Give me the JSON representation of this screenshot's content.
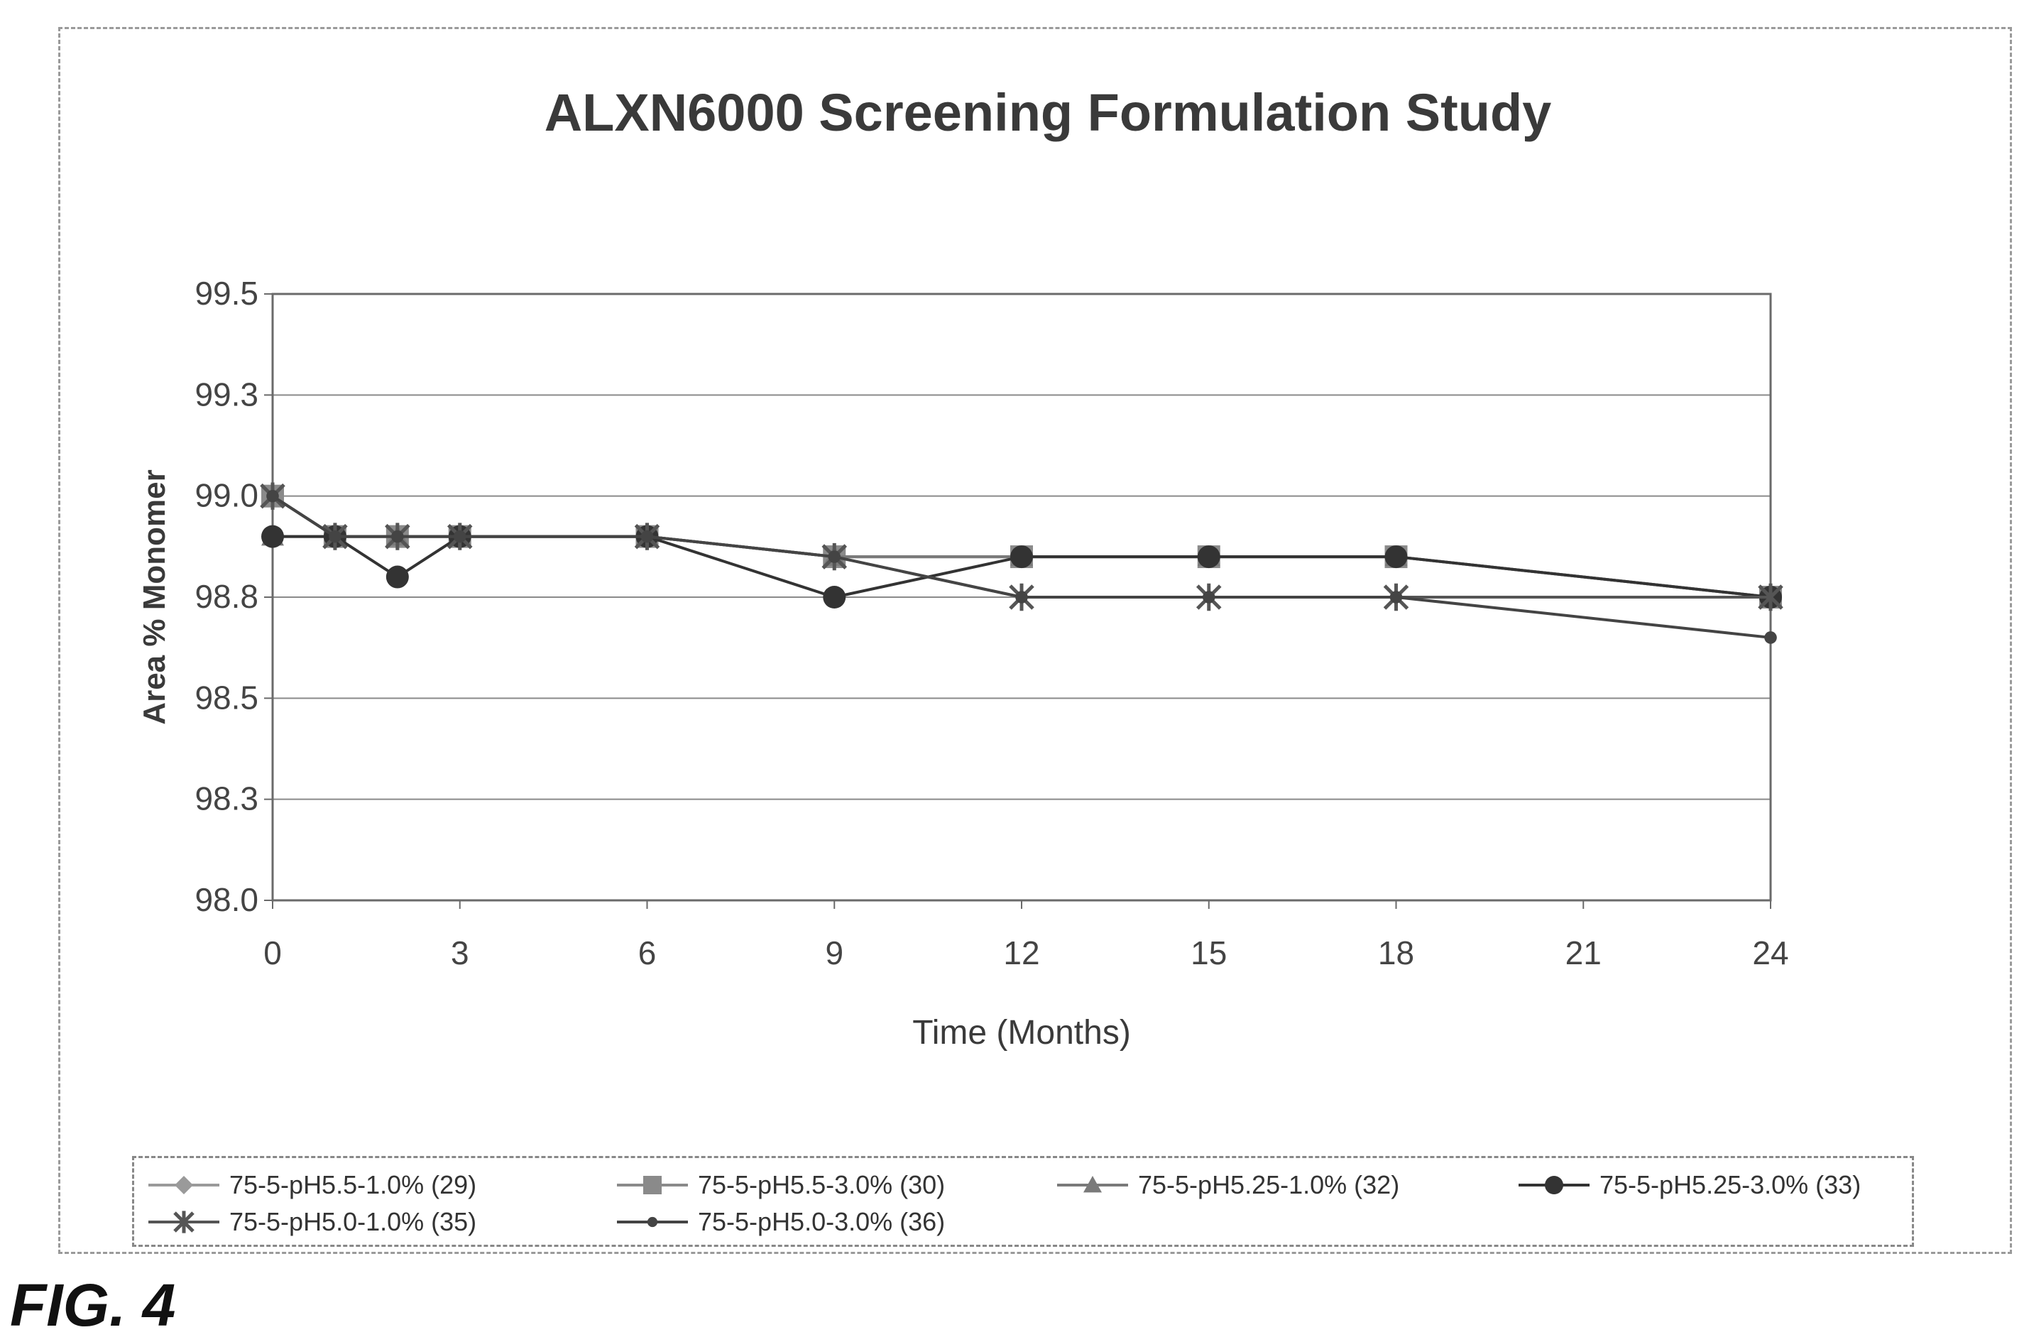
{
  "figure_label": "FIG. 4",
  "chart_data": {
    "type": "line",
    "title": "ALXN6000 Screening Formulation Study",
    "xlabel": "Time (Months)",
    "ylabel": "Area % Monomer",
    "xlim": [
      0,
      24
    ],
    "ylim": [
      98.0,
      99.5
    ],
    "x_ticks": [
      0,
      3,
      6,
      9,
      12,
      15,
      18,
      21,
      24
    ],
    "y_ticks": [
      98.0,
      98.25,
      98.5,
      98.75,
      99.0,
      99.25,
      99.5
    ],
    "y_tick_labels": [
      "98.0",
      "98.3",
      "98.5",
      "98.8",
      "99.0",
      "99.3",
      "99.5"
    ],
    "grid": "horizontal",
    "legend_position": "bottom",
    "series": [
      {
        "name": "75-5-pH5.5-1.0% (29)",
        "marker": "diamond",
        "color": "#9a9a9a",
        "x": [
          0,
          1,
          2,
          3,
          6,
          9,
          12,
          15,
          18,
          24
        ],
        "y": [
          99.0,
          98.9,
          98.9,
          98.9,
          98.9,
          98.85,
          98.85,
          98.85,
          98.85,
          98.75
        ]
      },
      {
        "name": "75-5-pH5.5-3.0% (30)",
        "marker": "square",
        "color": "#8a8a8a",
        "x": [
          0,
          1,
          2,
          3,
          6,
          9,
          12,
          15,
          18,
          24
        ],
        "y": [
          99.0,
          98.9,
          98.9,
          98.9,
          98.9,
          98.85,
          98.85,
          98.85,
          98.85,
          98.75
        ]
      },
      {
        "name": "75-5-pH5.25-1.0% (32)",
        "marker": "triangle",
        "color": "#7a7a7a",
        "x": [
          0,
          1,
          2,
          3,
          6,
          9,
          12,
          15,
          18,
          24
        ],
        "y": [
          98.9,
          98.9,
          98.9,
          98.9,
          98.9,
          98.85,
          98.85,
          98.85,
          98.85,
          98.75
        ]
      },
      {
        "name": "75-5-pH5.25-3.0% (33)",
        "marker": "circle",
        "color": "#333333",
        "x": [
          0,
          1,
          2,
          3,
          6,
          9,
          12,
          15,
          18,
          24
        ],
        "y": [
          98.9,
          98.9,
          98.8,
          98.9,
          98.9,
          98.75,
          98.85,
          98.85,
          98.85,
          98.75
        ]
      },
      {
        "name": "75-5-pH5.0-1.0% (35)",
        "marker": "star",
        "color": "#555555",
        "x": [
          0,
          1,
          2,
          3,
          6,
          9,
          12,
          15,
          18,
          24
        ],
        "y": [
          99.0,
          98.9,
          98.9,
          98.9,
          98.9,
          98.85,
          98.75,
          98.75,
          98.75,
          98.75
        ]
      },
      {
        "name": "75-5-pH5.0-3.0% (36)",
        "marker": "dot",
        "color": "#444444",
        "x": [
          0,
          1,
          2,
          3,
          6,
          9,
          12,
          15,
          18,
          24
        ],
        "y": [
          99.0,
          98.9,
          98.9,
          98.9,
          98.9,
          98.85,
          98.75,
          98.75,
          98.75,
          98.65
        ]
      }
    ]
  }
}
